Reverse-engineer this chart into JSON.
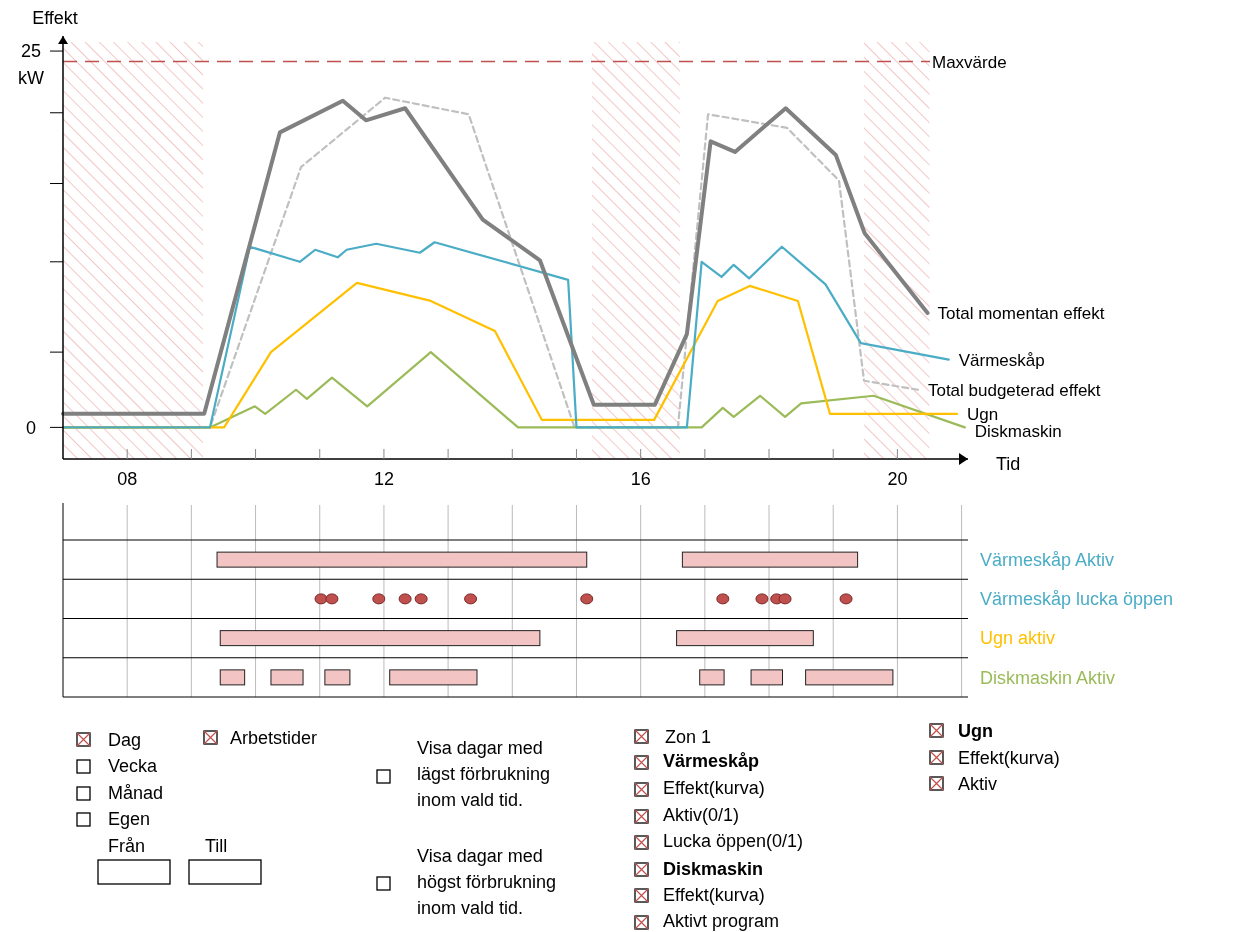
{
  "chart_data": [
    {
      "type": "line",
      "xlabel": "Tid",
      "ylabel": "Effekt",
      "annotations": [
        "kW"
      ],
      "grid": false,
      "xlim": [
        7,
        21.1
      ],
      "xticks": [
        {
          "value": 8,
          "label": "08"
        },
        {
          "value": 9,
          "label": null
        },
        {
          "value": 10,
          "label": null
        },
        {
          "value": 11,
          "label": null
        },
        {
          "value": 12,
          "label": "12"
        },
        {
          "value": 13,
          "label": null
        },
        {
          "value": 14,
          "label": null
        },
        {
          "value": 15,
          "label": null
        },
        {
          "value": 16,
          "label": "16"
        },
        {
          "value": 17,
          "label": null
        },
        {
          "value": 18,
          "label": null
        },
        {
          "value": 19,
          "label": null
        },
        {
          "value": 20,
          "label": "20"
        }
      ],
      "ylim": [
        -2.1,
        26
      ],
      "yticks": [
        0,
        {
          "value": 5,
          "label": null
        },
        {
          "value": 11,
          "label": null
        },
        {
          "value": 16.2,
          "label": null
        },
        {
          "value": 20.9,
          "label": null
        },
        25
      ],
      "ref_lines": [
        {
          "axis": "y",
          "value": 24.3,
          "label": "Maxvärde",
          "color": "#c0504d",
          "line_style": "dashed"
        }
      ],
      "bands": [
        {
          "axis": "x",
          "from": 7,
          "to": 9.18,
          "label": null,
          "color": "#f4c7c7"
        },
        {
          "axis": "x",
          "from": 15.24,
          "to": 16.61,
          "label": null,
          "color": "#f4c7c7"
        },
        {
          "axis": "x",
          "from": 19.48,
          "to": 20.5,
          "label": null,
          "color": "#f4c7c7"
        }
      ],
      "series": [
        {
          "name": "Total budgeterad effekt",
          "color": "#c0c0c0",
          "line_style": "dashed",
          "x": [
            7,
            9.29,
            10.71,
            12.02,
            13.32,
            14.97,
            16.58,
            17.05,
            18.28,
            19.09,
            19.48,
            20.32
          ],
          "values": [
            0,
            0,
            17.3,
            21.9,
            20.8,
            0,
            0,
            20.8,
            19.9,
            16.4,
            3.1,
            2.5
          ]
        },
        {
          "name": "Diskmaskin",
          "color": "#9bbb59",
          "x": [
            7,
            9.29,
            9.99,
            10.15,
            10.63,
            10.8,
            11.19,
            11.74,
            12.73,
            14.09,
            16.95,
            17.28,
            17.45,
            17.86,
            18.25,
            18.5,
            19.63,
            21.05
          ],
          "values": [
            0,
            0,
            1.4,
            0.9,
            2.5,
            1.9,
            3.3,
            1.4,
            5.0,
            0,
            0,
            1.3,
            0.7,
            2.1,
            0.7,
            1.6,
            2.1,
            0
          ]
        },
        {
          "name": "Ugn",
          "color": "#ffc000",
          "x": [
            7,
            9.51,
            10.24,
            11.58,
            12.73,
            13.73,
            14.46,
            16.21,
            17.2,
            17.7,
            18.45,
            18.95,
            20.93
          ],
          "values": [
            0,
            0,
            5.0,
            9.6,
            8.4,
            6.4,
            0.5,
            0.5,
            8.4,
            9.4,
            8.4,
            0.9,
            0.9
          ]
        },
        {
          "name": "Värmeskåp",
          "color": "#4bacc6",
          "x": [
            7,
            9.29,
            9.91,
            10.69,
            10.93,
            11.28,
            11.42,
            11.88,
            12.56,
            12.79,
            14.87,
            15.0,
            16.72,
            16.95,
            17.26,
            17.45,
            17.69,
            18.2,
            18.88,
            19.43,
            20.8
          ],
          "values": [
            0,
            0,
            12.0,
            11.0,
            11.8,
            11.3,
            11.8,
            12.2,
            11.6,
            12.3,
            9.8,
            0,
            0,
            11.0,
            10.0,
            10.8,
            9.9,
            12.0,
            9.5,
            5.6,
            4.5
          ]
        },
        {
          "name": "Total momentan effekt",
          "color": "#808080",
          "x": [
            7,
            9.2,
            10.38,
            11.36,
            11.72,
            12.33,
            13.54,
            14.43,
            15.27,
            16.22,
            16.72,
            17.09,
            17.47,
            18.26,
            19.04,
            19.49,
            20.47
          ],
          "values": [
            0.9,
            0.9,
            19.6,
            21.7,
            20.4,
            21.2,
            13.8,
            11.1,
            1.5,
            1.5,
            6.2,
            19.0,
            18.3,
            21.2,
            18.1,
            12.9,
            7.6
          ]
        }
      ]
    },
    {
      "type": "bar",
      "orientation": "horizontal",
      "grid": "x",
      "tick_labels": "y",
      "categories": [
        "Värmeskåp Aktiv",
        "Värmeskåp lucka öppen",
        "Ugn aktiv",
        "Diskmaskin Aktiv"
      ],
      "xlim": [
        7,
        21.1
      ],
      "xticks": [
        {
          "value": 8,
          "label": null
        },
        {
          "value": 9,
          "label": null
        },
        {
          "value": 10,
          "label": null
        },
        {
          "value": 11,
          "label": null
        },
        {
          "value": 12,
          "label": null
        },
        {
          "value": 13,
          "label": null
        },
        {
          "value": 14,
          "label": null
        },
        {
          "value": 15,
          "label": null
        },
        {
          "value": 16,
          "label": null
        },
        {
          "value": 17,
          "label": null
        },
        {
          "value": 18,
          "label": null
        },
        {
          "value": 19,
          "label": null
        },
        {
          "value": 20,
          "label": null
        },
        {
          "value": 21,
          "label": null
        }
      ],
      "series": [
        {
          "color": "#f2c4c4",
          "base": [
            9.4,
            null,
            9.45,
            9.45
          ],
          "values": [
            5.76,
            null,
            4.98,
            0.38
          ]
        },
        {
          "color": "#f2c4c4",
          "base": [
            16.65,
            null,
            16.56,
            10.24
          ],
          "values": [
            2.73,
            null,
            2.13,
            0.5
          ]
        },
        {
          "color": "#f2c4c4",
          "base": [
            null,
            null,
            null,
            11.08
          ],
          "values": [
            null,
            null,
            null,
            0.39
          ]
        },
        {
          "color": "#f2c4c4",
          "base": [
            null,
            null,
            null,
            12.09
          ],
          "values": [
            null,
            null,
            null,
            1.36
          ]
        },
        {
          "color": "#f2c4c4",
          "base": [
            null,
            null,
            null,
            16.92
          ],
          "values": [
            null,
            null,
            null,
            0.38
          ]
        },
        {
          "color": "#f2c4c4",
          "base": [
            null,
            null,
            null,
            17.72
          ],
          "values": [
            null,
            null,
            null,
            0.49
          ]
        },
        {
          "color": "#f2c4c4",
          "base": [
            null,
            null,
            null,
            18.57
          ],
          "values": [
            null,
            null,
            null,
            1.36
          ]
        },
        {
          "type": "scatter",
          "color": "#c0504d",
          "values": [
            null,
            11.02,
            null,
            null
          ]
        },
        {
          "type": "scatter",
          "color": "#c0504d",
          "values": [
            null,
            11.19,
            null,
            null
          ]
        },
        {
          "type": "scatter",
          "color": "#c0504d",
          "values": [
            null,
            11.92,
            null,
            null
          ]
        },
        {
          "type": "scatter",
          "color": "#c0504d",
          "values": [
            null,
            12.33,
            null,
            null
          ]
        },
        {
          "type": "scatter",
          "color": "#c0504d",
          "values": [
            null,
            12.58,
            null,
            null
          ]
        },
        {
          "type": "scatter",
          "color": "#c0504d",
          "values": [
            null,
            13.35,
            null,
            null
          ]
        },
        {
          "type": "scatter",
          "color": "#c0504d",
          "values": [
            null,
            15.16,
            null,
            null
          ]
        },
        {
          "type": "scatter",
          "color": "#c0504d",
          "values": [
            null,
            17.28,
            null,
            null
          ]
        },
        {
          "type": "scatter",
          "color": "#c0504d",
          "values": [
            null,
            17.89,
            null,
            null
          ]
        },
        {
          "type": "scatter",
          "color": "#c0504d",
          "values": [
            null,
            18.12,
            null,
            null
          ]
        },
        {
          "type": "scatter",
          "color": "#c0504d",
          "values": [
            null,
            18.25,
            null,
            null
          ]
        },
        {
          "type": "scatter",
          "color": "#c0504d",
          "values": [
            null,
            19.2,
            null,
            null
          ]
        }
      ]
    },
    {
      "type": "other",
      "annotations": [
        "Dag",
        "Vecka",
        "Månad",
        "Egen",
        "Från",
        "Till",
        "Arbetstider",
        "Visa dagar med\nlägst förbrukning\ninom vald tid.",
        "Visa dagar med\nhögst förbrukning\ninom vald tid.",
        "Zon 1",
        "Värmeskåp",
        "Effekt(kurva)",
        "Aktiv(0/1)",
        "Lucka öppen(0/1)",
        "Diskmaskin",
        "Effekt(kurva)",
        "Aktivt program",
        "Ugn",
        "Effekt(kurva)",
        "Aktiv"
      ]
    }
  ]
}
